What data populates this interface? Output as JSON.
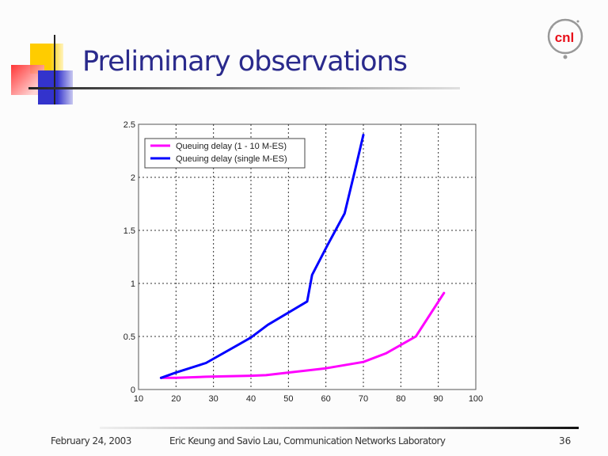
{
  "slide": {
    "title": "Preliminary observations",
    "logo_text": "cnl",
    "footer": {
      "date": "February 24, 2003",
      "credit": "Eric Keung and Savio Lau, Communication Networks Laboratory",
      "page": "36"
    }
  },
  "colors": {
    "title": "#2a2a8c",
    "series_multi": "#ff00ff",
    "series_single": "#0000ff",
    "logo_red": "#e8101a"
  },
  "chart_data": {
    "type": "line",
    "title": "",
    "xlabel": "",
    "ylabel": "",
    "xlim": [
      10,
      100
    ],
    "ylim": [
      0,
      2.5
    ],
    "xticks": [
      "10",
      "20",
      "30",
      "40",
      "50",
      "60",
      "70",
      "80",
      "90",
      "100"
    ],
    "xtick_values": [
      10,
      20,
      30,
      40,
      50,
      60,
      70,
      80,
      90,
      100
    ],
    "yticks": [
      "0",
      "0.5",
      "1",
      "1.5",
      "2",
      "2.5"
    ],
    "ytick_values": [
      0,
      0.5,
      1,
      1.5,
      2,
      2.5
    ],
    "grid": true,
    "legend_position": "top-left",
    "series": [
      {
        "name": "Queuing delay (1 - 10 M-ES)",
        "color": "#ff00ff",
        "x": [
          16,
          20,
          28,
          40,
          44,
          50,
          60,
          70,
          76,
          84,
          91.5
        ],
        "y": [
          0.11,
          0.11,
          0.12,
          0.13,
          0.135,
          0.16,
          0.2,
          0.26,
          0.34,
          0.5,
          0.91
        ]
      },
      {
        "name": "Queuing delay (single M-ES)",
        "color": "#0000ff",
        "x": [
          16,
          20,
          28,
          37,
          40,
          44.5,
          55,
          56.3,
          60.4,
          65,
          68,
          70
        ],
        "y": [
          0.11,
          0.16,
          0.25,
          0.43,
          0.49,
          0.61,
          0.83,
          1.08,
          1.36,
          1.66,
          2.1,
          2.4
        ]
      }
    ]
  }
}
